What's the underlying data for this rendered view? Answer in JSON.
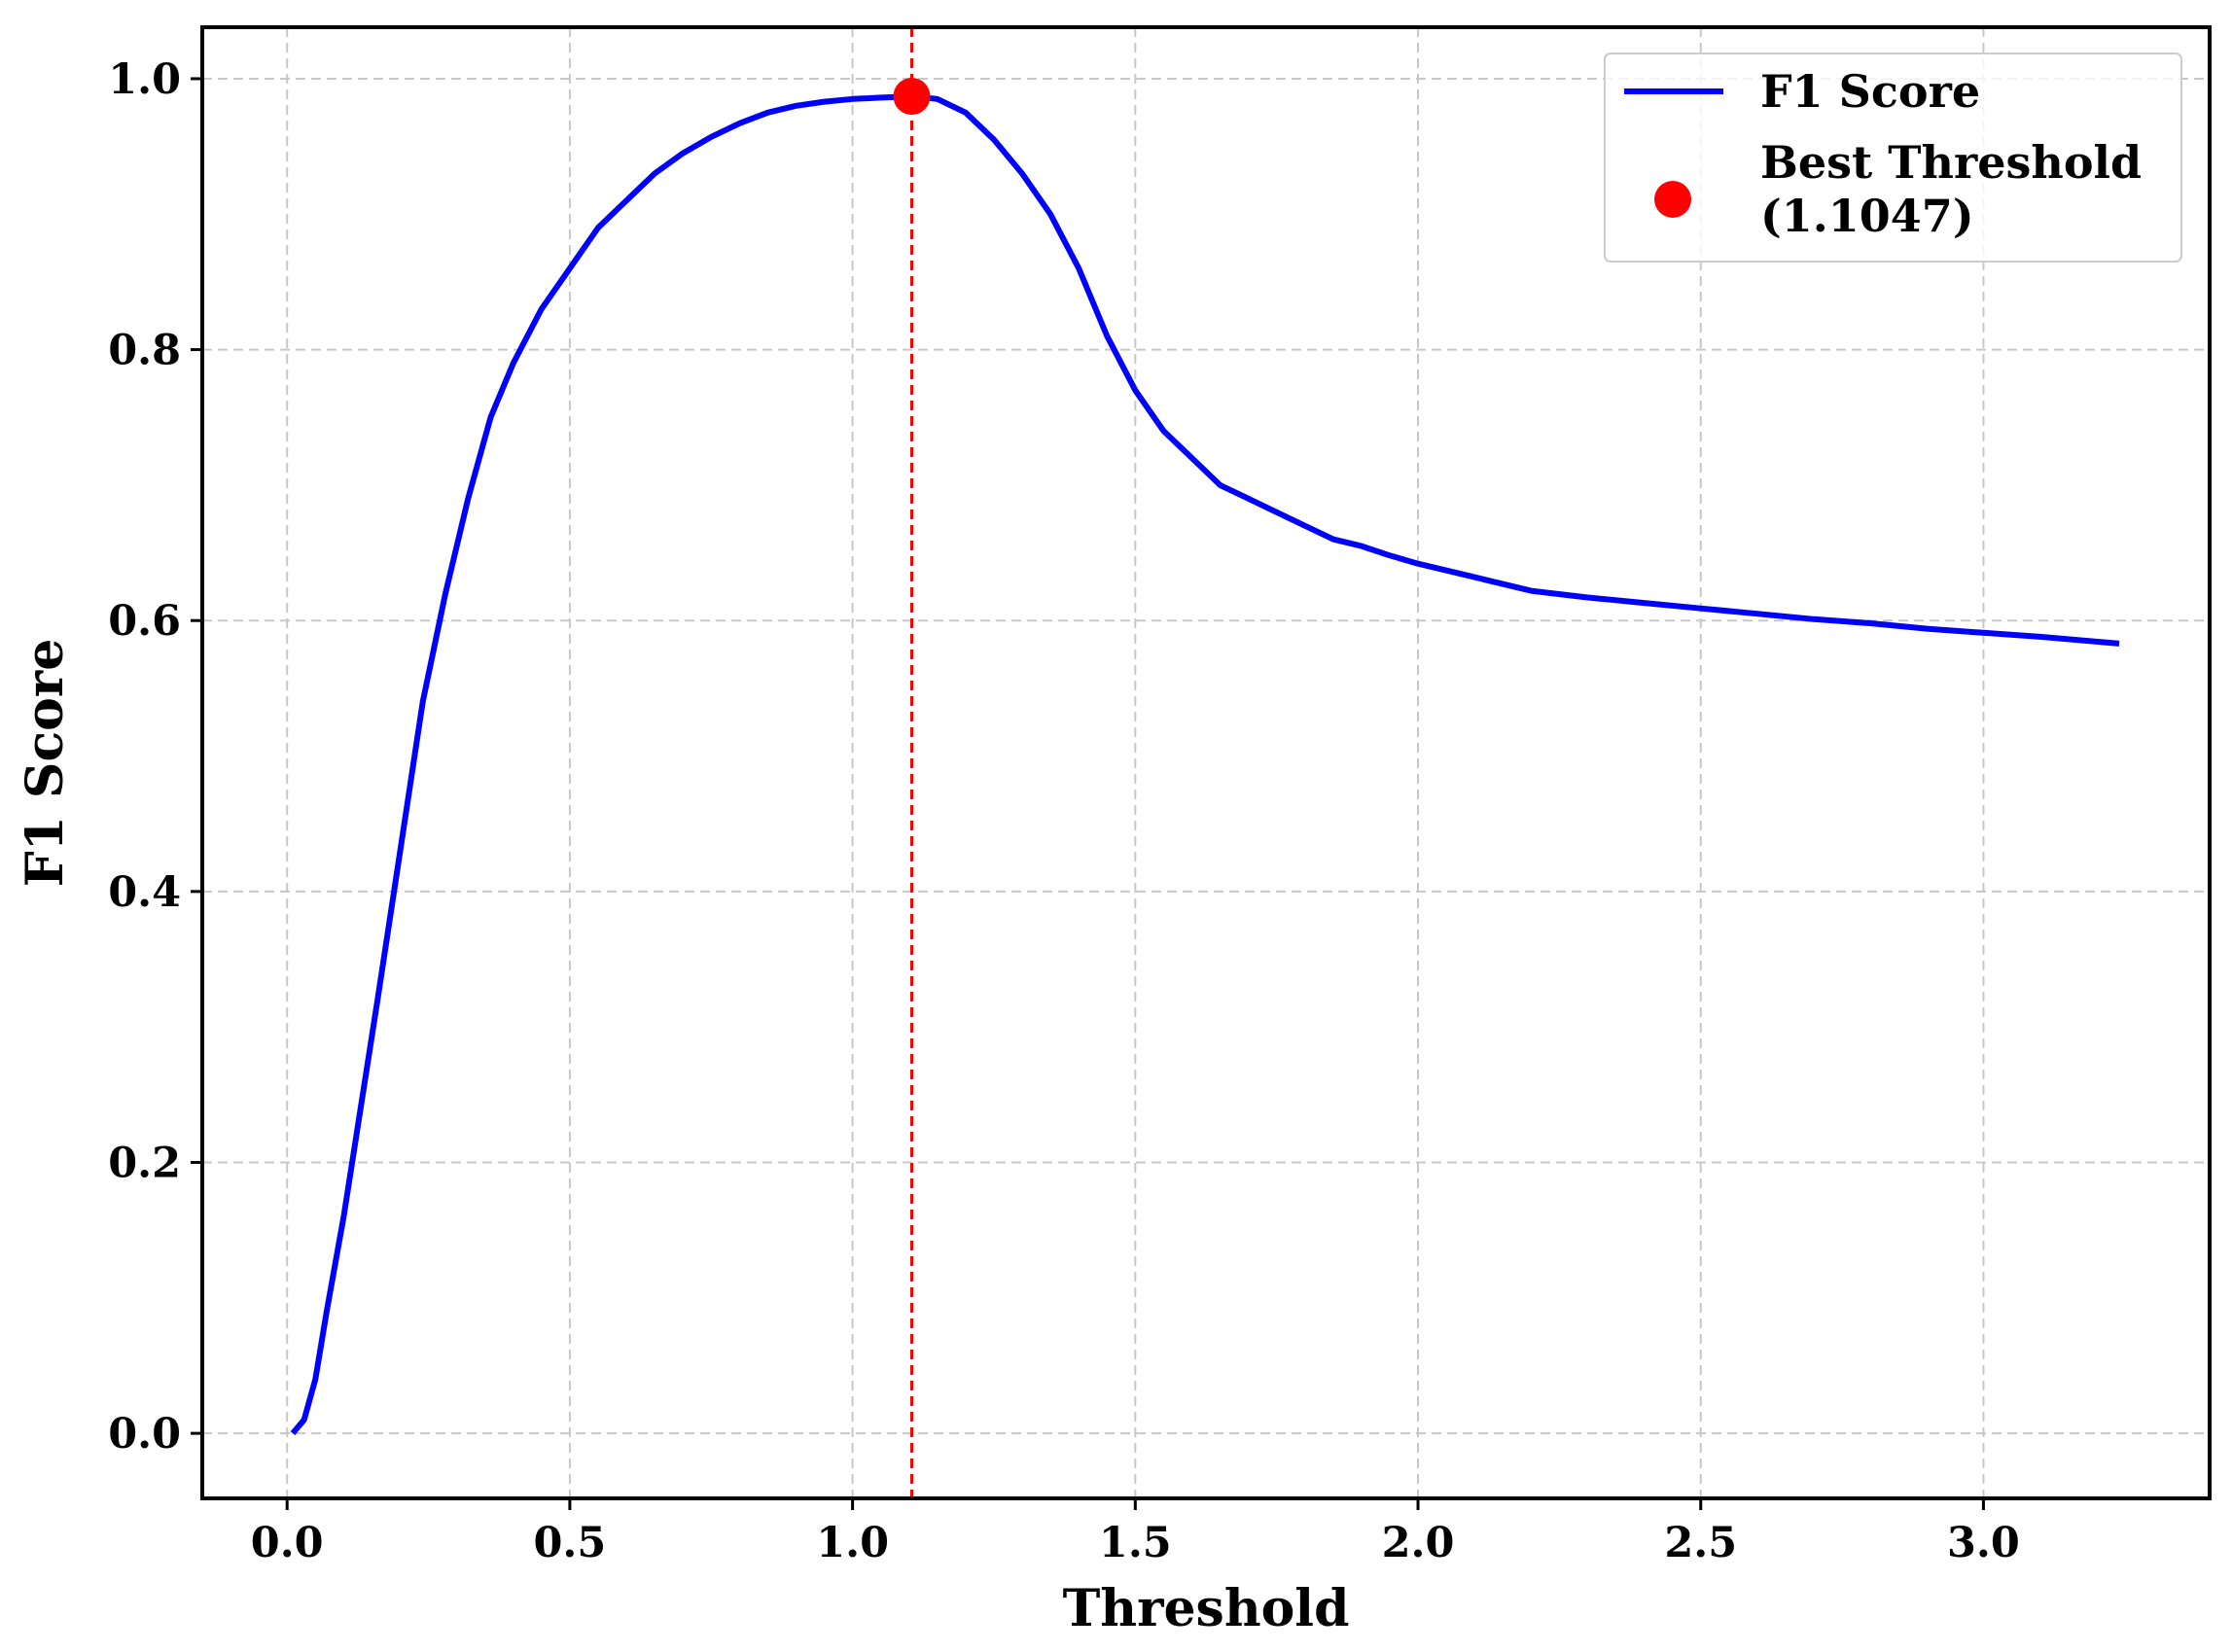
{
  "chart_data": {
    "type": "line",
    "xlabel": "Threshold",
    "ylabel": "F1 Score",
    "xlim": [
      -0.15,
      3.4
    ],
    "ylim": [
      -0.048,
      1.038
    ],
    "x_ticks": [
      0.0,
      0.5,
      1.0,
      1.5,
      2.0,
      2.5,
      3.0
    ],
    "x_tick_labels": [
      "0.0",
      "0.5",
      "1.0",
      "1.5",
      "2.0",
      "2.5",
      "3.0"
    ],
    "y_ticks": [
      0.0,
      0.2,
      0.4,
      0.6,
      0.8,
      1.0
    ],
    "y_tick_labels": [
      "0.0",
      "0.2",
      "0.4",
      "0.6",
      "0.8",
      "1.0"
    ],
    "grid": true,
    "legend_position": "top-right",
    "series": [
      {
        "name": "F1 Score",
        "color": "#0000ff",
        "x": [
          0.01,
          0.03,
          0.05,
          0.07,
          0.1,
          0.13,
          0.16,
          0.2,
          0.24,
          0.28,
          0.32,
          0.36,
          0.4,
          0.45,
          0.5,
          0.55,
          0.6,
          0.65,
          0.7,
          0.75,
          0.8,
          0.85,
          0.9,
          0.95,
          1.0,
          1.05,
          1.1047,
          1.15,
          1.2,
          1.25,
          1.3,
          1.35,
          1.4,
          1.45,
          1.5,
          1.55,
          1.6,
          1.65,
          1.7,
          1.75,
          1.8,
          1.85,
          1.9,
          1.95,
          2.0,
          2.1,
          2.2,
          2.3,
          2.4,
          2.5,
          2.6,
          2.7,
          2.8,
          2.9,
          3.0,
          3.1,
          3.24
        ],
        "y": [
          0.0,
          0.01,
          0.04,
          0.09,
          0.16,
          0.24,
          0.32,
          0.43,
          0.54,
          0.62,
          0.69,
          0.75,
          0.79,
          0.83,
          0.86,
          0.89,
          0.91,
          0.93,
          0.945,
          0.957,
          0.967,
          0.975,
          0.98,
          0.983,
          0.985,
          0.986,
          0.987,
          0.985,
          0.975,
          0.955,
          0.93,
          0.9,
          0.86,
          0.81,
          0.77,
          0.74,
          0.72,
          0.7,
          0.69,
          0.68,
          0.67,
          0.66,
          0.655,
          0.648,
          0.642,
          0.632,
          0.622,
          0.617,
          0.613,
          0.609,
          0.605,
          0.601,
          0.598,
          0.594,
          0.591,
          0.588,
          0.583
        ]
      }
    ],
    "best_threshold": {
      "name": "Best Threshold\n(1.1047)",
      "legend_line1": "Best Threshold",
      "legend_line2": "(1.1047)",
      "x": 1.1047,
      "y": 0.987,
      "color": "#ff0000"
    },
    "vline": {
      "x": 1.1047,
      "color": "#ff0000"
    }
  }
}
